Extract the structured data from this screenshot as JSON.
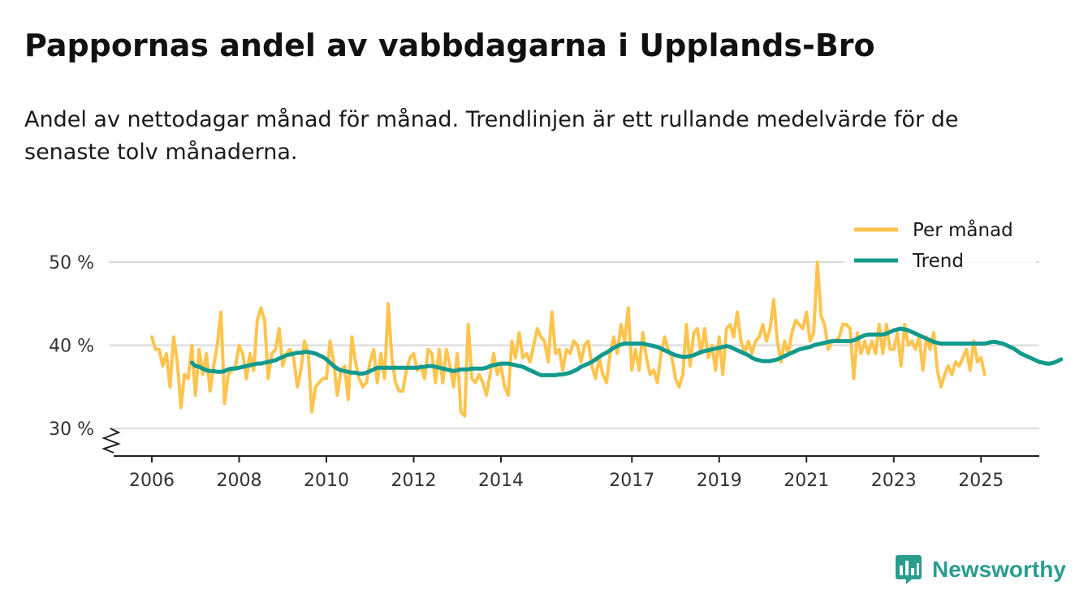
{
  "title": "Pappornas andel av vabbdagarna i Upplands-Bro",
  "subtitle": "Andel av nettodagar månad för månad. Trendlinjen är ett rullande medelvärde för de senaste tolv månaderna.",
  "brand": {
    "name": "Newsworthy",
    "color": "#2a9d8f"
  },
  "chart_data": {
    "type": "line",
    "xlabel": "",
    "ylabel": "",
    "ylim": [
      27,
      52
    ],
    "yticks": [
      30,
      40,
      50
    ],
    "ytick_labels": [
      "30 %",
      "40 %",
      "50 %"
    ],
    "axis_break": true,
    "grid": true,
    "legend_position": "top-right",
    "xticks": [
      2006,
      2008,
      2010,
      2012,
      2014,
      2017,
      2019,
      2021,
      2023,
      2025
    ],
    "xtick_labels": [
      "2006",
      "2008",
      "2010",
      "2012",
      "2014",
      "2017",
      "2019",
      "2021",
      "2023",
      "2025"
    ],
    "x_range": [
      2005.1,
      2026.3
    ],
    "series": [
      {
        "name": "Per månad",
        "color": "#ffc44d",
        "start": 2006.0,
        "step": 0.0833333,
        "values": [
          41,
          39.5,
          39.5,
          37.5,
          39,
          35,
          41,
          38,
          32.5,
          36.5,
          36,
          40,
          34,
          39.5,
          36.5,
          39,
          34.5,
          37.5,
          40,
          44,
          33,
          36.5,
          37,
          37.5,
          40,
          39,
          36,
          39,
          37,
          43,
          44.5,
          43,
          36,
          39,
          39.5,
          42,
          37.5,
          39,
          39.5,
          38.5,
          35,
          37,
          40.5,
          39,
          32,
          35,
          35.5,
          36,
          36,
          40.5,
          38,
          34,
          37,
          37.5,
          33.5,
          41,
          38,
          36,
          35,
          35.5,
          38,
          39.5,
          35.5,
          39,
          36,
          45,
          38.5,
          35.5,
          34.5,
          34.5,
          37,
          38.5,
          39,
          37,
          37.5,
          36,
          39.5,
          39,
          35.5,
          39.5,
          35.5,
          39.5,
          37.5,
          35,
          39,
          32,
          31.5,
          42.5,
          36,
          35.5,
          36.5,
          35.5,
          34,
          36.5,
          39,
          36.5,
          37.5,
          35,
          34,
          40.5,
          38.5,
          41.5,
          38.5,
          39,
          38,
          40,
          42,
          41,
          40.5,
          38,
          44,
          39,
          39.5,
          37,
          39.5,
          39,
          40.5,
          40,
          38,
          40,
          40.5,
          37.5,
          36,
          38.5,
          36.5,
          35.5,
          39,
          41,
          39,
          42.5,
          40.5,
          44.5,
          37,
          39.5,
          37,
          41.5,
          38.5,
          36.5,
          37,
          35.5,
          39,
          41,
          39.5,
          38.5,
          36,
          35,
          36.5,
          42.5,
          37.5,
          41.5,
          42,
          39,
          42,
          38.5,
          40,
          37,
          41,
          36.5,
          42,
          42.5,
          41,
          44,
          40.5,
          39,
          40.5,
          39,
          40.5,
          41,
          42.5,
          40.5,
          42,
          45.5,
          40.5,
          38,
          40.5,
          39,
          41.5,
          43,
          42.5,
          42,
          44,
          40.5,
          41.5,
          50,
          43.5,
          42.5,
          39.5,
          40.5,
          40.5,
          41,
          42.5,
          42.5,
          42,
          36,
          41.5,
          39,
          40.5,
          39,
          40.5,
          39,
          42.5,
          39,
          42.5,
          39.5,
          39.5,
          41.5,
          37.5,
          42.5,
          40,
          40.5,
          39.5,
          41,
          37,
          41,
          39.5,
          41.5,
          37,
          35,
          36.5,
          37.5,
          36.5,
          38,
          37.5,
          38.5,
          39.5,
          37,
          40.5,
          38,
          38.5,
          36.5
        ]
      },
      {
        "name": "Trend",
        "color": "#129a8c",
        "start": 2006.9167,
        "step": 0.0833333,
        "values": [
          37.9,
          37.5,
          37.4,
          37.2,
          37.0,
          36.9,
          36.9,
          36.8,
          36.8,
          36.9,
          37.1,
          37.2,
          37.2,
          37.3,
          37.4,
          37.5,
          37.6,
          37.7,
          37.8,
          37.8,
          37.9,
          38.0,
          38.1,
          38.2,
          38.4,
          38.6,
          38.8,
          38.9,
          39.0,
          39.1,
          39.1,
          39.2,
          39.2,
          39.1,
          39.0,
          38.8,
          38.6,
          38.3,
          37.9,
          37.5,
          37.2,
          37.0,
          36.9,
          36.8,
          36.7,
          36.7,
          36.6,
          36.6,
          36.7,
          36.9,
          37.1,
          37.3,
          37.3,
          37.3,
          37.3,
          37.3,
          37.3,
          37.3,
          37.3,
          37.3,
          37.3,
          37.3,
          37.3,
          37.4,
          37.4,
          37.5,
          37.5,
          37.4,
          37.3,
          37.2,
          37.1,
          37.0,
          36.9,
          37.0,
          37.1,
          37.1,
          37.1,
          37.2,
          37.2,
          37.2,
          37.2,
          37.3,
          37.5,
          37.6,
          37.7,
          37.8,
          37.8,
          37.8,
          37.7,
          37.6,
          37.5,
          37.4,
          37.2,
          37.0,
          36.8,
          36.6,
          36.4,
          36.4,
          36.4,
          36.4,
          36.4,
          36.5,
          36.5,
          36.6,
          36.7,
          36.9,
          37.1,
          37.4,
          37.6,
          37.8,
          38.0,
          38.3,
          38.6,
          38.9,
          39.1,
          39.4,
          39.7,
          39.9,
          40.1,
          40.2,
          40.2,
          40.2,
          40.2,
          40.2,
          40.2,
          40.1,
          40.0,
          39.9,
          39.8,
          39.6,
          39.4,
          39.2,
          39.0,
          38.8,
          38.7,
          38.6,
          38.6,
          38.7,
          38.8,
          39.0,
          39.2,
          39.3,
          39.4,
          39.5,
          39.6,
          39.7,
          39.8,
          39.9,
          39.8,
          39.6,
          39.4,
          39.2,
          39.0,
          38.8,
          38.5,
          38.3,
          38.2,
          38.1,
          38.1,
          38.1,
          38.2,
          38.3,
          38.5,
          38.7,
          38.9,
          39.1,
          39.3,
          39.5,
          39.6,
          39.7,
          39.8,
          40.0,
          40.1,
          40.2,
          40.3,
          40.4,
          40.5,
          40.5,
          40.5,
          40.5,
          40.5,
          40.5,
          40.6,
          40.8,
          41.0,
          41.2,
          41.3,
          41.3,
          41.3,
          41.3,
          41.3,
          41.4,
          41.6,
          41.8,
          41.9,
          42.0,
          41.9,
          41.8,
          41.6,
          41.4,
          41.2,
          41.0,
          40.8,
          40.6,
          40.4,
          40.3,
          40.2,
          40.2,
          40.2,
          40.2,
          40.2,
          40.2,
          40.2,
          40.2,
          40.2,
          40.2,
          40.2,
          40.2,
          40.2,
          40.3,
          40.4,
          40.4,
          40.3,
          40.2,
          40.0,
          39.8,
          39.6,
          39.3,
          39.0,
          38.8,
          38.6,
          38.4,
          38.2,
          38.0,
          37.9,
          37.8,
          37.8,
          37.9,
          38.1,
          38.3
        ]
      }
    ]
  }
}
